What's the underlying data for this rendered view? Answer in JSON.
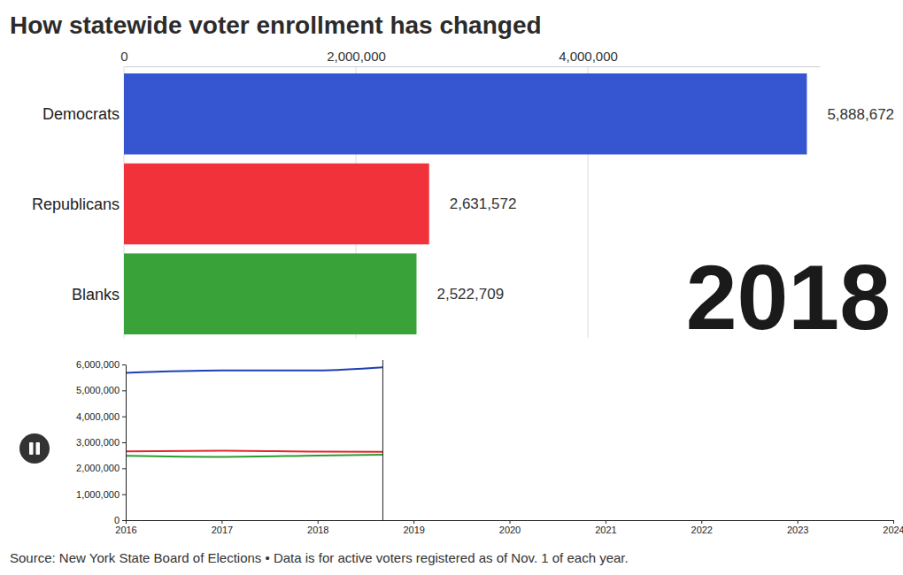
{
  "chart_data": [
    {
      "type": "bar",
      "orientation": "horizontal",
      "title": "How statewide voter enrollment has changed",
      "categories": [
        "Democrats",
        "Republicans",
        "Blanks"
      ],
      "values": [
        5888672,
        2631572,
        2522709
      ],
      "value_labels": [
        "5,888,672",
        "2,631,572",
        "2,522,709"
      ],
      "colors": [
        "#3050d0",
        "#f22b35",
        "#33a033"
      ],
      "data_labels": true,
      "grid": true,
      "xlim": [
        0,
        6000000
      ],
      "xticks": [
        0,
        {
          "value": 2000000,
          "label": "2,000,000"
        },
        {
          "value": 4000000,
          "label": "4,000,000"
        }
      ],
      "annotation": "2018"
    },
    {
      "type": "line",
      "x": [
        2016,
        2017,
        2018,
        2018.68
      ],
      "series": [
        {
          "color": "#1f3fb0",
          "values": [
            5680000,
            5770000,
            5770000,
            5888672
          ]
        },
        {
          "color": "#e0262f",
          "values": [
            2650000,
            2680000,
            2640000,
            2631572
          ]
        },
        {
          "color": "#2f9a2f",
          "values": [
            2480000,
            2440000,
            2490000,
            2522709
          ]
        }
      ],
      "xlim": [
        2016,
        2024
      ],
      "xticks": [
        2016,
        2017,
        2018,
        2019,
        2020,
        2021,
        2022,
        2023,
        2024
      ],
      "ylim": [
        0,
        6000000
      ],
      "yticks": [
        0,
        {
          "value": 1000000,
          "label": "1,000,000"
        },
        {
          "value": 2000000,
          "label": "2,000,000"
        },
        {
          "value": 3000000,
          "label": "3,000,000"
        },
        {
          "value": 4000000,
          "label": "4,000,000"
        },
        {
          "value": 5000000,
          "label": "5,000,000"
        },
        {
          "value": 6000000,
          "label": "6,000,000"
        }
      ]
    }
  ],
  "source": "Source: New York State Board of Elections • Data is for active voters registered as of Nov. 1 of each year."
}
